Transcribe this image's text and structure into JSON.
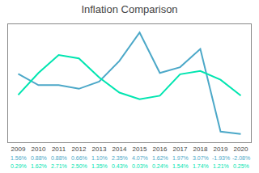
{
  "chart_data": {
    "type": "line",
    "title": "Inflation Comparison",
    "x": [
      2009,
      2010,
      2011,
      2012,
      2013,
      2014,
      2015,
      2016,
      2017,
      2018,
      2019,
      2020
    ],
    "series": [
      {
        "color": "#4ca8c8",
        "values": [
          1.56,
          0.88,
          0.88,
          0.66,
          1.1,
          2.35,
          4.07,
          1.62,
          1.97,
          3.07,
          -1.93,
          -2.08
        ],
        "value_labels": [
          "1.56%",
          "0.88%",
          "0.88%",
          "0.66%",
          "1.10%",
          "2.35%",
          "4.07%",
          "1.62%",
          "1.97%",
          "3.07%",
          "-1.93%",
          "-2.08%"
        ]
      },
      {
        "color": "#00e5b0",
        "values": [
          0.29,
          1.62,
          2.71,
          2.5,
          1.35,
          0.43,
          0.03,
          0.24,
          1.54,
          1.74,
          1.21,
          0.25
        ],
        "value_labels": [
          "0.29%",
          "1.62%",
          "2.71%",
          "2.50%",
          "1.35%",
          "0.43%",
          "0.03%",
          "0.24%",
          "1.54%",
          "1.74%",
          "1.21%",
          "0.25%"
        ]
      }
    ],
    "xlim": [
      2008.5,
      2020.5
    ],
    "xticks": [
      2009,
      2010,
      2011,
      2012,
      2013,
      2014,
      2015,
      2016,
      2017,
      2018,
      2019,
      2020
    ],
    "ylim": [
      -2.58,
      4.57
    ],
    "grid": false,
    "tick_labels": "x",
    "data_labels": true
  }
}
